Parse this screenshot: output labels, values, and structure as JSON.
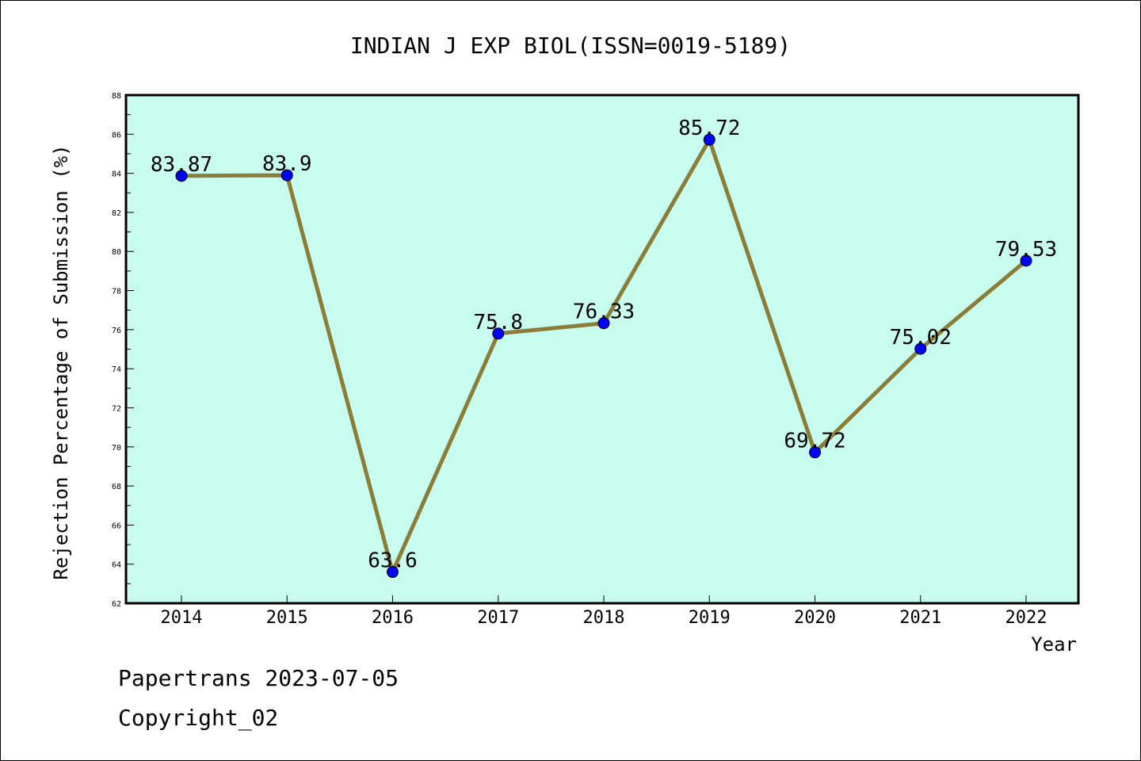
{
  "chart_data": {
    "type": "line",
    "title": "INDIAN J EXP BIOL(ISSN=0019-5189)",
    "xlabel": "Year",
    "ylabel": "Rejection Percentage of Submission (%)",
    "categories": [
      "2014",
      "2015",
      "2016",
      "2017",
      "2018",
      "2019",
      "2020",
      "2021",
      "2022"
    ],
    "values": [
      83.87,
      83.9,
      63.6,
      75.8,
      76.33,
      85.72,
      69.72,
      75.02,
      79.53
    ],
    "data_labels": [
      "83.87",
      "83.9",
      "63.6",
      "75.8",
      "76.33",
      "85.72",
      "69.72",
      "75.02",
      "79.53"
    ],
    "ylim": [
      62,
      88
    ],
    "yticks": [
      "62",
      "64",
      "66",
      "68",
      "70",
      "72",
      "74",
      "76",
      "78",
      "80",
      "82",
      "84",
      "86",
      "88"
    ],
    "grid": false,
    "legend": "none",
    "colors": {
      "plot_background": "#c8fcee",
      "line": "#8b7d37",
      "marker": "#0000ff"
    }
  },
  "footer": {
    "line1": "Papertrans 2023-07-05",
    "line2": "Copyright_02"
  }
}
